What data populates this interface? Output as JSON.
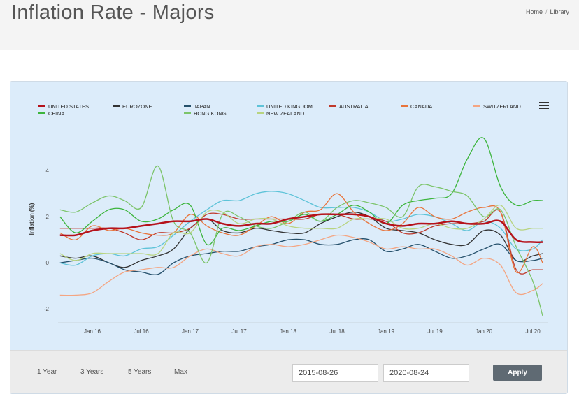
{
  "page": {
    "title": "Inflation Rate - Majors"
  },
  "breadcrumb": {
    "home": "Home",
    "separator": "/",
    "current": "Library"
  },
  "controls": {
    "ranges": [
      "1 Year",
      "3 Years",
      "5 Years",
      "Max"
    ],
    "start_date": "2015-08-26",
    "end_date": "2020-08-24",
    "apply_label": "Apply"
  },
  "chart_data": {
    "type": "line",
    "title": "",
    "xlabel": "",
    "ylabel": "Inflation (%)",
    "ylim": [
      -2.6,
      6.4
    ],
    "yticks": [
      -2,
      0,
      2,
      4
    ],
    "xlim": [
      2015.65,
      2020.65
    ],
    "x_ticks": [
      {
        "label": "Jan 16",
        "x": 2016.0
      },
      {
        "label": "Jul 16",
        "x": 2016.5
      },
      {
        "label": "Jan 17",
        "x": 2017.0
      },
      {
        "label": "Jul 17",
        "x": 2017.5
      },
      {
        "label": "Jan 18",
        "x": 2018.0
      },
      {
        "label": "Jul 18",
        "x": 2018.5
      },
      {
        "label": "Jan 19",
        "x": 2019.0
      },
      {
        "label": "Jul 19",
        "x": 2019.5
      },
      {
        "label": "Jan 20",
        "x": 2020.0
      },
      {
        "label": "Jul 20",
        "x": 2020.5
      }
    ],
    "grid": false,
    "legend_position": "top",
    "series": [
      {
        "name": "UNITED STATES",
        "color": "#b5121b",
        "width": 2.5,
        "x": [
          2015.67,
          2015.83,
          2016.0,
          2016.17,
          2016.33,
          2016.5,
          2016.67,
          2016.83,
          2017.0,
          2017.17,
          2017.33,
          2017.5,
          2017.67,
          2017.83,
          2018.0,
          2018.17,
          2018.33,
          2018.5,
          2018.67,
          2018.83,
          2019.0,
          2019.17,
          2019.33,
          2019.5,
          2019.67,
          2019.83,
          2020.0,
          2020.17,
          2020.33,
          2020.5,
          2020.6
        ],
        "values": [
          1.2,
          1.2,
          1.4,
          1.5,
          1.5,
          1.6,
          1.7,
          1.8,
          1.8,
          1.9,
          1.7,
          1.6,
          1.7,
          1.7,
          1.9,
          2.0,
          2.1,
          2.1,
          2.1,
          2.0,
          1.7,
          1.6,
          1.7,
          1.7,
          1.8,
          1.7,
          1.7,
          1.8,
          1.0,
          0.9,
          0.9
        ]
      },
      {
        "name": "EUROZONE",
        "color": "#333333",
        "width": 1.3,
        "x": [
          2015.67,
          2015.83,
          2016.0,
          2016.17,
          2016.33,
          2016.5,
          2016.67,
          2016.83,
          2017.0,
          2017.17,
          2017.33,
          2017.5,
          2017.67,
          2017.83,
          2018.0,
          2018.17,
          2018.33,
          2018.5,
          2018.67,
          2018.83,
          2019.0,
          2019.17,
          2019.33,
          2019.5,
          2019.67,
          2019.83,
          2020.0,
          2020.17,
          2020.33,
          2020.5,
          2020.6
        ],
        "values": [
          0.3,
          0.2,
          0.3,
          0.0,
          -0.2,
          0.1,
          0.3,
          0.6,
          1.5,
          1.9,
          1.4,
          1.3,
          1.5,
          1.4,
          1.3,
          1.3,
          1.7,
          2.0,
          2.2,
          2.0,
          1.5,
          1.4,
          1.3,
          1.0,
          0.8,
          0.8,
          1.4,
          1.2,
          0.1,
          0.3,
          0.4
        ]
      },
      {
        "name": "JAPAN",
        "color": "#25506b",
        "width": 1.3,
        "x": [
          2015.67,
          2015.83,
          2016.0,
          2016.17,
          2016.33,
          2016.5,
          2016.67,
          2016.83,
          2017.0,
          2017.17,
          2017.33,
          2017.5,
          2017.67,
          2017.83,
          2018.0,
          2018.17,
          2018.33,
          2018.5,
          2018.67,
          2018.83,
          2019.0,
          2019.17,
          2019.33,
          2019.5,
          2019.67,
          2019.83,
          2020.0,
          2020.17,
          2020.33,
          2020.5,
          2020.6
        ],
        "values": [
          0.0,
          0.1,
          0.2,
          0.0,
          -0.3,
          -0.4,
          -0.5,
          0.0,
          0.3,
          0.4,
          0.5,
          0.5,
          0.7,
          0.8,
          1.0,
          1.0,
          0.8,
          0.8,
          1.0,
          1.0,
          0.5,
          0.6,
          0.8,
          0.5,
          0.2,
          0.3,
          0.6,
          0.8,
          0.1,
          0.1,
          0.2
        ]
      },
      {
        "name": "UNITED KINGDOM",
        "color": "#5ec3d8",
        "width": 1.3,
        "x": [
          2015.67,
          2015.83,
          2016.0,
          2016.17,
          2016.33,
          2016.5,
          2016.67,
          2016.83,
          2017.0,
          2017.17,
          2017.33,
          2017.5,
          2017.67,
          2017.83,
          2018.0,
          2018.17,
          2018.33,
          2018.5,
          2018.67,
          2018.83,
          2019.0,
          2019.17,
          2019.33,
          2019.5,
          2019.67,
          2019.83,
          2020.0,
          2020.17,
          2020.33,
          2020.5,
          2020.6
        ],
        "values": [
          0.0,
          -0.1,
          0.3,
          0.4,
          0.3,
          0.6,
          0.7,
          1.2,
          1.8,
          2.3,
          2.7,
          2.7,
          3.0,
          3.1,
          3.0,
          2.7,
          2.4,
          2.4,
          2.4,
          2.2,
          1.8,
          1.9,
          2.1,
          2.0,
          1.7,
          1.4,
          1.8,
          1.5,
          0.6,
          0.6,
          1.0
        ]
      },
      {
        "name": "AUSTRALIA",
        "color": "#c0392b",
        "width": 1.3,
        "x": [
          2015.67,
          2015.83,
          2016.0,
          2016.17,
          2016.33,
          2016.5,
          2016.67,
          2016.83,
          2017.0,
          2017.17,
          2017.33,
          2017.5,
          2017.67,
          2017.83,
          2018.0,
          2018.17,
          2018.33,
          2018.5,
          2018.67,
          2018.83,
          2019.0,
          2019.17,
          2019.33,
          2019.5,
          2019.67,
          2019.83,
          2020.0,
          2020.17,
          2020.33,
          2020.5,
          2020.6
        ],
        "values": [
          1.5,
          1.5,
          1.5,
          1.5,
          1.3,
          1.0,
          1.3,
          1.3,
          1.5,
          2.1,
          2.1,
          1.9,
          1.9,
          1.9,
          1.9,
          1.9,
          2.1,
          2.1,
          1.9,
          1.9,
          1.8,
          1.3,
          1.3,
          1.6,
          1.7,
          1.7,
          1.8,
          2.2,
          -0.3,
          -0.3,
          -0.3
        ]
      },
      {
        "name": "CANADA",
        "color": "#e8743b",
        "width": 1.3,
        "x": [
          2015.67,
          2015.83,
          2016.0,
          2016.17,
          2016.33,
          2016.5,
          2016.67,
          2016.83,
          2017.0,
          2017.17,
          2017.33,
          2017.5,
          2017.67,
          2017.83,
          2018.0,
          2018.17,
          2018.33,
          2018.5,
          2018.67,
          2018.83,
          2019.0,
          2019.17,
          2019.33,
          2019.5,
          2019.67,
          2019.83,
          2020.0,
          2020.17,
          2020.33,
          2020.5,
          2020.6
        ],
        "values": [
          1.3,
          1.0,
          1.6,
          1.4,
          1.5,
          1.3,
          1.2,
          1.3,
          2.1,
          1.6,
          1.3,
          1.2,
          1.6,
          2.0,
          1.7,
          2.2,
          2.3,
          3.0,
          2.2,
          1.7,
          1.4,
          1.7,
          2.4,
          2.0,
          1.9,
          2.2,
          2.4,
          2.2,
          -0.4,
          0.7,
          0.0
        ]
      },
      {
        "name": "SWITZERLAND",
        "color": "#f4a582",
        "width": 1.3,
        "x": [
          2015.67,
          2015.83,
          2016.0,
          2016.17,
          2016.33,
          2016.5,
          2016.67,
          2016.83,
          2017.0,
          2017.17,
          2017.33,
          2017.5,
          2017.67,
          2017.83,
          2018.0,
          2018.17,
          2018.33,
          2018.5,
          2018.67,
          2018.83,
          2019.0,
          2019.17,
          2019.33,
          2019.5,
          2019.67,
          2019.83,
          2020.0,
          2020.17,
          2020.33,
          2020.5,
          2020.6
        ],
        "values": [
          -1.4,
          -1.4,
          -1.3,
          -0.8,
          -0.4,
          -0.3,
          -0.2,
          -0.2,
          0.3,
          0.6,
          0.4,
          0.3,
          0.7,
          0.8,
          0.7,
          0.8,
          1.0,
          1.2,
          1.1,
          0.9,
          0.6,
          0.7,
          0.6,
          0.6,
          0.3,
          -0.1,
          0.2,
          -0.1,
          -1.3,
          -1.2,
          -0.9
        ]
      },
      {
        "name": "CHINA",
        "color": "#3db53d",
        "width": 1.3,
        "x": [
          2015.67,
          2015.83,
          2016.0,
          2016.17,
          2016.33,
          2016.5,
          2016.67,
          2016.83,
          2017.0,
          2017.17,
          2017.33,
          2017.5,
          2017.67,
          2017.83,
          2018.0,
          2018.17,
          2018.33,
          2018.5,
          2018.67,
          2018.83,
          2019.0,
          2019.17,
          2019.33,
          2019.5,
          2019.67,
          2019.83,
          2020.0,
          2020.17,
          2020.33,
          2020.5,
          2020.6
        ],
        "values": [
          2.0,
          1.3,
          1.8,
          2.3,
          2.3,
          1.8,
          1.9,
          2.3,
          2.5,
          0.8,
          1.5,
          1.4,
          1.6,
          1.8,
          1.8,
          2.1,
          1.8,
          2.1,
          2.5,
          2.2,
          1.7,
          2.5,
          2.7,
          2.8,
          3.0,
          4.5,
          5.4,
          3.3,
          2.5,
          2.7,
          2.7
        ]
      },
      {
        "name": "HONG KONG",
        "color": "#7cc46a",
        "width": 1.3,
        "x": [
          2015.67,
          2015.83,
          2016.0,
          2016.17,
          2016.33,
          2016.5,
          2016.67,
          2016.83,
          2017.0,
          2017.17,
          2017.33,
          2017.5,
          2017.67,
          2017.83,
          2018.0,
          2018.17,
          2018.33,
          2018.5,
          2018.67,
          2018.83,
          2019.0,
          2019.17,
          2019.33,
          2019.5,
          2019.67,
          2019.83,
          2020.0,
          2020.17,
          2020.33,
          2020.5,
          2020.6
        ],
        "values": [
          2.3,
          2.2,
          2.6,
          2.9,
          2.7,
          2.4,
          4.2,
          1.8,
          1.3,
          0.0,
          2.1,
          2.0,
          1.6,
          1.5,
          1.8,
          2.2,
          1.8,
          2.4,
          2.7,
          2.6,
          2.4,
          2.0,
          3.3,
          3.3,
          3.1,
          2.9,
          2.0,
          2.3,
          0.7,
          -0.8,
          -2.3
        ]
      },
      {
        "name": "NEW ZEALAND",
        "color": "#b8d480",
        "width": 1.3,
        "x": [
          2015.67,
          2015.83,
          2016.0,
          2016.17,
          2016.33,
          2016.5,
          2016.67,
          2016.83,
          2017.0,
          2017.17,
          2017.33,
          2017.5,
          2017.67,
          2017.83,
          2018.0,
          2018.17,
          2018.33,
          2018.5,
          2018.67,
          2018.83,
          2019.0,
          2019.17,
          2019.33,
          2019.5,
          2019.67,
          2019.83,
          2020.0,
          2020.17,
          2020.33,
          2020.5,
          2020.6
        ],
        "values": [
          0.4,
          0.1,
          0.4,
          0.4,
          0.4,
          0.4,
          0.4,
          1.3,
          1.3,
          2.2,
          2.2,
          1.7,
          1.9,
          1.9,
          1.6,
          1.5,
          1.5,
          1.5,
          1.9,
          1.9,
          1.9,
          1.5,
          1.5,
          1.7,
          1.5,
          1.5,
          1.9,
          2.5,
          1.5,
          1.5,
          1.5
        ]
      }
    ]
  }
}
